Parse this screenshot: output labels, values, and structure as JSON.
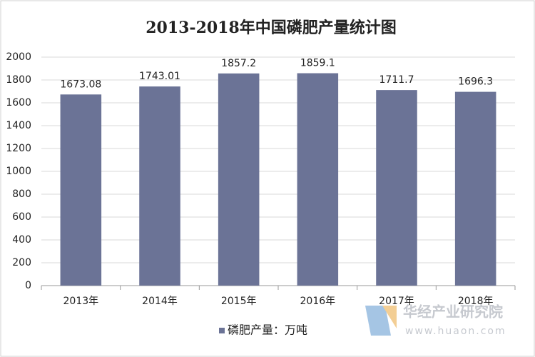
{
  "chart_data": {
    "type": "bar",
    "title": "2013-2018年中国磷肥产量统计图",
    "categories": [
      "2013年",
      "2014年",
      "2015年",
      "2016年",
      "2017年",
      "2018年"
    ],
    "series": [
      {
        "name": "磷肥产量：万吨",
        "color": "#6b7396",
        "values": [
          1673.08,
          1743.01,
          1857.2,
          1859.1,
          1711.7,
          1696.3
        ]
      }
    ],
    "ylim": [
      0,
      2000
    ],
    "yticks": [
      0,
      200,
      400,
      600,
      800,
      1000,
      1200,
      1400,
      1600,
      1800,
      2000
    ],
    "grid": true,
    "legend": "bottom",
    "watermark": {
      "name": "华经产业研究院",
      "url": "www.huaon.com"
    }
  }
}
